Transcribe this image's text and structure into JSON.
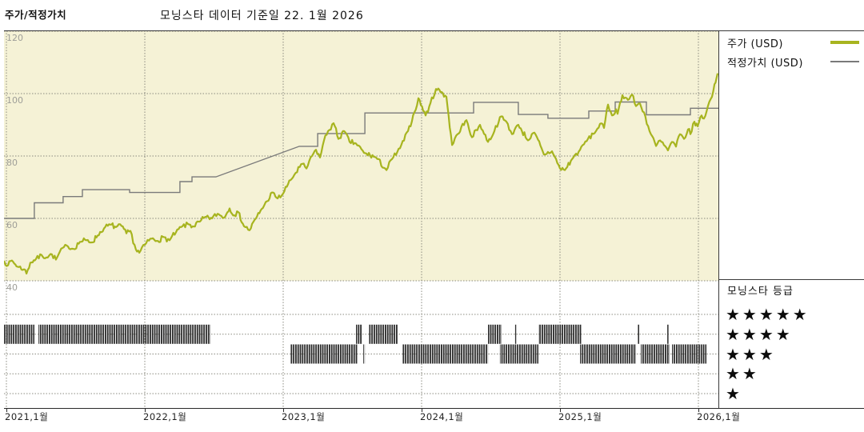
{
  "header": {
    "left_label": "주가/적정가치",
    "title": "모닝스타 데이터 기준일 22. 1월 2026"
  },
  "legend": {
    "price_label": "주가 (USD)",
    "fair_value_label": "적정가치 (USD)",
    "rating_title": "모닝스타 등급",
    "rating_rows": [
      5,
      4,
      3,
      2,
      1
    ]
  },
  "colors": {
    "price": "#a7b41f",
    "fair_value": "#7a7a7a",
    "chart_bg": "#f5f2d6",
    "grid": "#8b8b80",
    "rating_bar": "#2a2a2a",
    "y_label": "#9e9e98",
    "x_label": "#222222",
    "border": "#3a3a3a"
  },
  "chart_data": {
    "type": "line",
    "title": "모닝스타 데이터 기준일 22. 1월 2026",
    "x_axis": {
      "ticks": [
        2021,
        2022,
        2023,
        2024,
        2025,
        2026
      ],
      "tick_labels": [
        "2021,1월",
        "2022,1월",
        "2023,1월",
        "2024,1월",
        "2025,1월",
        "2026,1월"
      ],
      "range": [
        2020.983,
        2026.17
      ]
    },
    "y_axis": {
      "ticks": [
        120,
        100,
        80,
        60,
        40
      ],
      "shaded_range": [
        40,
        120
      ]
    },
    "series": [
      {
        "name": "주가 (USD)",
        "style": "line",
        "points": [
          [
            2020.983,
            46.4
          ],
          [
            2021.012,
            45.0
          ],
          [
            2021.04,
            46.5
          ],
          [
            2021.081,
            44.5
          ],
          [
            2021.127,
            43.7
          ],
          [
            2021.145,
            42.3
          ],
          [
            2021.173,
            45.8
          ],
          [
            2021.214,
            47.0
          ],
          [
            2021.254,
            48.3
          ],
          [
            2021.289,
            47.5
          ],
          [
            2021.329,
            48.5
          ],
          [
            2021.358,
            46.8
          ],
          [
            2021.405,
            50.5
          ],
          [
            2021.445,
            51.0
          ],
          [
            2021.486,
            50.2
          ],
          [
            2021.532,
            52.5
          ],
          [
            2021.578,
            53.0
          ],
          [
            2021.618,
            52.3
          ],
          [
            2021.659,
            54.5
          ],
          [
            2021.705,
            56.8
          ],
          [
            2021.751,
            58.0
          ],
          [
            2021.792,
            57.2
          ],
          [
            2021.832,
            57.6
          ],
          [
            2021.867,
            55.2
          ],
          [
            2021.896,
            56.0
          ],
          [
            2021.936,
            50.0
          ],
          [
            2021.96,
            49.0
          ],
          [
            2022.0,
            51.5
          ],
          [
            2022.04,
            53.5
          ],
          [
            2022.087,
            52.8
          ],
          [
            2022.139,
            54.0
          ],
          [
            2022.179,
            53.0
          ],
          [
            2022.225,
            55.5
          ],
          [
            2022.272,
            57.5
          ],
          [
            2022.312,
            58.2
          ],
          [
            2022.353,
            57.4
          ],
          [
            2022.399,
            59.0
          ],
          [
            2022.445,
            60.5
          ],
          [
            2022.486,
            60.0
          ],
          [
            2022.526,
            61.5
          ],
          [
            2022.572,
            60.2
          ],
          [
            2022.613,
            63.2
          ],
          [
            2022.647,
            61.0
          ],
          [
            2022.676,
            62.0
          ],
          [
            2022.717,
            57.5
          ],
          [
            2022.757,
            56.2
          ],
          [
            2022.803,
            60.0
          ],
          [
            2022.844,
            63.0
          ],
          [
            2022.884,
            65.5
          ],
          [
            2022.919,
            68.3
          ],
          [
            2022.96,
            66.4
          ],
          [
            2023.0,
            68.0
          ],
          [
            2023.035,
            71.0
          ],
          [
            2023.081,
            74.0
          ],
          [
            2023.139,
            77.5
          ],
          [
            2023.168,
            76.0
          ],
          [
            2023.208,
            80.0
          ],
          [
            2023.237,
            82.0
          ],
          [
            2023.266,
            79.5
          ],
          [
            2023.295,
            85.0
          ],
          [
            2023.324,
            88.0
          ],
          [
            2023.364,
            90.5
          ],
          [
            2023.399,
            85.5
          ],
          [
            2023.44,
            88.0
          ],
          [
            2023.48,
            84.5
          ],
          [
            2023.526,
            84.0
          ],
          [
            2023.584,
            81.0
          ],
          [
            2023.671,
            79.5
          ],
          [
            2023.746,
            75.5
          ],
          [
            2023.786,
            79.0
          ],
          [
            2023.844,
            82.5
          ],
          [
            2023.902,
            88.0
          ],
          [
            2023.948,
            94.0
          ],
          [
            2023.977,
            98.5
          ],
          [
            2024.029,
            93.0
          ],
          [
            2024.064,
            97.0
          ],
          [
            2024.104,
            101.5
          ],
          [
            2024.145,
            100.5
          ],
          [
            2024.179,
            99.0
          ],
          [
            2024.22,
            83.5
          ],
          [
            2024.26,
            87.0
          ],
          [
            2024.324,
            91.5
          ],
          [
            2024.364,
            86.0
          ],
          [
            2024.422,
            90.0
          ],
          [
            2024.48,
            84.5
          ],
          [
            2024.526,
            88.0
          ],
          [
            2024.566,
            92.5
          ],
          [
            2024.613,
            91.0
          ],
          [
            2024.653,
            87.0
          ],
          [
            2024.699,
            90.0
          ],
          [
            2024.769,
            85.0
          ],
          [
            2024.815,
            87.5
          ],
          [
            2024.884,
            80.5
          ],
          [
            2024.942,
            81.5
          ],
          [
            2025.0,
            76.0
          ],
          [
            2025.035,
            75.5
          ],
          [
            2025.087,
            79.0
          ],
          [
            2025.145,
            82.0
          ],
          [
            2025.202,
            85.5
          ],
          [
            2025.26,
            88.0
          ],
          [
            2025.289,
            90.3
          ],
          [
            2025.318,
            89.0
          ],
          [
            2025.347,
            96.5
          ],
          [
            2025.376,
            93.0
          ],
          [
            2025.405,
            95.0
          ],
          [
            2025.416,
            93.5
          ],
          [
            2025.451,
            99.5
          ],
          [
            2025.491,
            98.0
          ],
          [
            2025.52,
            99.7
          ],
          [
            2025.549,
            96.0
          ],
          [
            2025.578,
            96.8
          ],
          [
            2025.607,
            94.0
          ],
          [
            2025.647,
            88.0
          ],
          [
            2025.694,
            83.2
          ],
          [
            2025.723,
            85.0
          ],
          [
            2025.751,
            83.5
          ],
          [
            2025.78,
            81.8
          ],
          [
            2025.809,
            84.5
          ],
          [
            2025.838,
            83.0
          ],
          [
            2025.867,
            87.0
          ],
          [
            2025.896,
            85.5
          ],
          [
            2025.925,
            88.5
          ],
          [
            2025.942,
            87.0
          ],
          [
            2025.971,
            91.0
          ],
          [
            2025.994,
            89.5
          ],
          [
            2026.023,
            93.0
          ],
          [
            2026.04,
            92.0
          ],
          [
            2026.069,
            96.0
          ],
          [
            2026.098,
            99.0
          ],
          [
            2026.116,
            103.0
          ],
          [
            2026.139,
            106.5
          ]
        ]
      },
      {
        "name": "적정가치 (USD)",
        "style": "step-polyline",
        "points": [
          [
            2020.983,
            60
          ],
          [
            2021.202,
            60
          ],
          [
            2021.202,
            65
          ],
          [
            2021.41,
            65
          ],
          [
            2021.41,
            67
          ],
          [
            2021.549,
            67
          ],
          [
            2021.549,
            69.2
          ],
          [
            2021.89,
            69.2
          ],
          [
            2021.89,
            68.3
          ],
          [
            2022.254,
            68.3
          ],
          [
            2022.254,
            71.8
          ],
          [
            2022.341,
            71.8
          ],
          [
            2022.341,
            73.3
          ],
          [
            2022.514,
            73.3
          ],
          [
            2023.116,
            83.1
          ],
          [
            2023.249,
            83.1
          ],
          [
            2023.249,
            87.2
          ],
          [
            2023.59,
            87.2
          ],
          [
            2023.59,
            93.8
          ],
          [
            2024.376,
            93.8
          ],
          [
            2024.376,
            97.2
          ],
          [
            2024.699,
            97.2
          ],
          [
            2024.699,
            93.3
          ],
          [
            2024.913,
            93.3
          ],
          [
            2024.913,
            92.1
          ],
          [
            2025.208,
            92.1
          ],
          [
            2025.208,
            94.4
          ],
          [
            2025.399,
            94.4
          ],
          [
            2025.399,
            97.3
          ],
          [
            2025.624,
            97.3
          ],
          [
            2025.624,
            93.2
          ],
          [
            2025.942,
            93.2
          ],
          [
            2025.942,
            95.3
          ],
          [
            2026.145,
            95.3
          ]
        ]
      }
    ],
    "ratings": {
      "legend_rows": [
        5,
        4,
        3,
        2,
        1
      ],
      "bands": [
        {
          "stars": 4,
          "from": 2020.983,
          "to": 2021.202
        },
        {
          "stars": 4,
          "from": 2021.231,
          "to": 2022.474
        },
        {
          "stars": 4,
          "from": 2023.526,
          "to": 2023.572
        },
        {
          "stars": 4,
          "from": 2023.619,
          "to": 2023.827
        },
        {
          "stars": 4,
          "from": 2024.48,
          "to": 2024.578
        },
        {
          "stars": 4,
          "from": 2024.676,
          "to": 2024.688
        },
        {
          "stars": 4,
          "from": 2024.844,
          "to": 2025.156
        },
        {
          "stars": 4,
          "from": 2025.561,
          "to": 2025.572
        },
        {
          "stars": 4,
          "from": 2025.775,
          "to": 2025.786
        },
        {
          "stars": 3,
          "from": 2023.052,
          "to": 2023.538
        },
        {
          "stars": 3,
          "from": 2023.578,
          "to": 2023.59
        },
        {
          "stars": 3,
          "from": 2023.861,
          "to": 2024.48
        },
        {
          "stars": 3,
          "from": 2024.566,
          "to": 2024.844
        },
        {
          "stars": 3,
          "from": 2025.145,
          "to": 2025.549
        },
        {
          "stars": 3,
          "from": 2025.584,
          "to": 2025.792
        },
        {
          "stars": 3,
          "from": 2025.809,
          "to": 2026.058
        }
      ]
    }
  }
}
